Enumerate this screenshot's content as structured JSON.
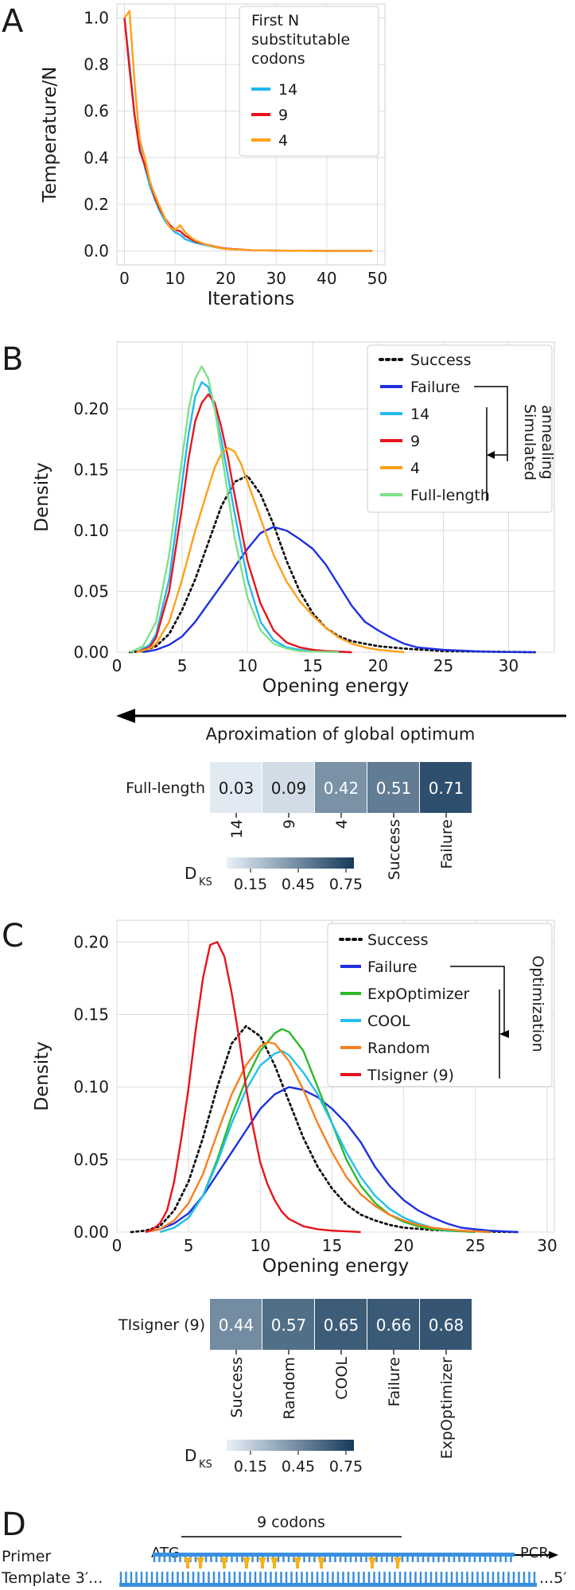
{
  "panel_letters": [
    "A",
    "B",
    "C",
    "D"
  ],
  "colors": {
    "success": "#111111",
    "failure": "#1f2fe0",
    "n14": "#22b8f0",
    "n9": "#e8141c",
    "n4": "#ffa019",
    "full": "#7fe08a",
    "expopt": "#2bbb2b",
    "cool": "#22c0ee",
    "random": "#f7801e",
    "tisigner": "#e8141c",
    "dna": "#3a8fe0",
    "mark": "#f5b21f",
    "heat_low": "#e9f1f8",
    "heat_high": "#153a5b"
  },
  "chart_data": [
    {
      "panel": "A",
      "type": "line",
      "xlabel": "Iterations",
      "ylabel": "Temperature/N",
      "xlim": [
        -1.5,
        51.5
      ],
      "ylim": [
        -0.06,
        1.06
      ],
      "xticks": [
        0,
        10,
        20,
        30,
        40,
        50
      ],
      "yticks": [
        0.0,
        0.2,
        0.4,
        0.6,
        0.8,
        1.0
      ],
      "grid": true,
      "legend": {
        "title": "First N substitutable codons",
        "position": "top-right",
        "title_lines": [
          "First N",
          "substitutable",
          "codons"
        ]
      },
      "series": [
        {
          "name": "14",
          "color_key": "n14",
          "x": [
            0,
            1,
            2,
            3,
            4,
            5,
            6,
            7,
            8,
            9,
            10,
            11,
            12,
            14,
            16,
            18,
            20,
            25,
            30,
            40,
            49
          ],
          "y": [
            1.0,
            0.8,
            0.58,
            0.45,
            0.36,
            0.28,
            0.22,
            0.17,
            0.13,
            0.1,
            0.08,
            0.07,
            0.05,
            0.035,
            0.025,
            0.015,
            0.008,
            0.003,
            0.001,
            0.0,
            0.0
          ]
        },
        {
          "name": "9",
          "color_key": "n9",
          "x": [
            0,
            1,
            2,
            3,
            4,
            5,
            6,
            7,
            8,
            9,
            10,
            11,
            12,
            14,
            16,
            18,
            20,
            25,
            30,
            40,
            49
          ],
          "y": [
            1.0,
            0.78,
            0.58,
            0.43,
            0.37,
            0.3,
            0.23,
            0.18,
            0.14,
            0.11,
            0.09,
            0.085,
            0.065,
            0.04,
            0.028,
            0.018,
            0.01,
            0.003,
            0.001,
            0.0,
            0.0
          ]
        },
        {
          "name": "4",
          "color_key": "n4",
          "x": [
            0,
            1,
            2,
            3,
            4,
            5,
            6,
            7,
            8,
            9,
            10,
            11,
            12,
            13,
            14,
            16,
            18,
            20,
            25,
            30,
            40,
            49
          ],
          "y": [
            1.0,
            1.03,
            0.72,
            0.48,
            0.4,
            0.3,
            0.24,
            0.19,
            0.14,
            0.1,
            0.09,
            0.11,
            0.08,
            0.06,
            0.045,
            0.028,
            0.016,
            0.008,
            0.003,
            0.001,
            0.0,
            0.0
          ]
        }
      ]
    },
    {
      "panel": "B",
      "type": "line",
      "xlabel": "Opening energy",
      "ylabel": "Density",
      "xlim": [
        0,
        33.5
      ],
      "ylim": [
        0,
        0.255
      ],
      "xticks": [
        0,
        5,
        10,
        15,
        20,
        25,
        30
      ],
      "yticks": [
        0.0,
        0.05,
        0.1,
        0.15,
        0.2
      ],
      "grid": true,
      "legend": {
        "position": "top-right",
        "group_label": "Simulated annealing"
      },
      "series": [
        {
          "name": "Success",
          "color_key": "success",
          "dotted": true,
          "x": [
            1,
            2,
            3,
            4,
            5,
            6,
            7,
            8,
            9,
            10,
            11,
            12,
            13,
            14,
            15,
            16,
            17,
            18,
            19,
            20,
            22,
            25,
            28,
            32
          ],
          "y": [
            0,
            0.001,
            0.005,
            0.015,
            0.035,
            0.06,
            0.09,
            0.12,
            0.14,
            0.145,
            0.13,
            0.105,
            0.075,
            0.05,
            0.032,
            0.02,
            0.013,
            0.009,
            0.007,
            0.005,
            0.003,
            0.001,
            0.0005,
            0
          ]
        },
        {
          "name": "Failure",
          "color_key": "failure",
          "x": [
            2,
            3,
            4,
            5,
            6,
            7,
            8,
            9,
            10,
            11,
            12,
            13,
            14,
            15,
            16,
            17,
            18,
            19,
            20,
            21,
            22,
            23,
            24,
            25,
            26,
            27,
            28,
            30,
            32
          ],
          "y": [
            0,
            0.002,
            0.006,
            0.013,
            0.025,
            0.04,
            0.055,
            0.07,
            0.085,
            0.098,
            0.103,
            0.1,
            0.093,
            0.085,
            0.072,
            0.055,
            0.038,
            0.025,
            0.018,
            0.012,
            0.007,
            0.004,
            0.003,
            0.002,
            0.0015,
            0.001,
            0.0005,
            0.0002,
            0
          ]
        },
        {
          "name": "14",
          "color_key": "n14",
          "x": [
            1.5,
            2.5,
            3,
            4,
            5,
            5.5,
            6,
            6.5,
            7,
            7.5,
            8,
            8.5,
            9,
            10,
            11,
            12,
            13,
            14,
            15,
            16,
            18
          ],
          "y": [
            0,
            0.006,
            0.015,
            0.06,
            0.14,
            0.18,
            0.21,
            0.222,
            0.218,
            0.2,
            0.175,
            0.145,
            0.115,
            0.06,
            0.025,
            0.01,
            0.004,
            0.002,
            0.001,
            0.0005,
            0
          ]
        },
        {
          "name": "9",
          "color_key": "n9",
          "x": [
            1.5,
            2.5,
            3,
            4,
            5,
            5.5,
            6,
            6.5,
            7,
            7.5,
            8,
            8.5,
            9,
            10,
            11,
            12,
            13,
            14,
            15,
            16,
            18
          ],
          "y": [
            0,
            0.004,
            0.012,
            0.05,
            0.12,
            0.16,
            0.19,
            0.205,
            0.212,
            0.205,
            0.185,
            0.16,
            0.13,
            0.075,
            0.04,
            0.018,
            0.008,
            0.004,
            0.002,
            0.001,
            0
          ]
        },
        {
          "name": "4",
          "color_key": "n4",
          "x": [
            1.5,
            2.5,
            3,
            4,
            5,
            6,
            7,
            7.5,
            8,
            8.5,
            9,
            9.5,
            10,
            11,
            12,
            13,
            14,
            15,
            16,
            17,
            18,
            19,
            20,
            22
          ],
          "y": [
            0,
            0.003,
            0.007,
            0.025,
            0.06,
            0.1,
            0.135,
            0.152,
            0.163,
            0.168,
            0.165,
            0.155,
            0.14,
            0.11,
            0.08,
            0.058,
            0.042,
            0.03,
            0.02,
            0.012,
            0.007,
            0.004,
            0.002,
            0
          ]
        },
        {
          "name": "Full-length",
          "color_key": "full",
          "x": [
            1,
            2,
            3,
            4,
            5,
            5.5,
            6,
            6.5,
            7,
            7.5,
            8,
            8.5,
            9,
            10,
            11,
            12,
            13,
            14,
            15,
            17
          ],
          "y": [
            0,
            0.005,
            0.025,
            0.08,
            0.16,
            0.2,
            0.225,
            0.235,
            0.225,
            0.2,
            0.165,
            0.13,
            0.095,
            0.045,
            0.018,
            0.007,
            0.003,
            0.001,
            0.0005,
            0
          ]
        }
      ],
      "heatmap": {
        "row_label": "Full-length",
        "columns": [
          "14",
          "9",
          "4",
          "Success",
          "Failure"
        ],
        "values": [
          0.03,
          0.09,
          0.42,
          0.51,
          0.71
        ],
        "labels": [
          "0.03",
          "0.09",
          "0.42",
          "0.51",
          "0.71"
        ],
        "colorbar_label": "D",
        "colorbar_sub": "KS",
        "colorbar_ticks": [
          "0.15",
          "0.45",
          "0.75"
        ],
        "colorbar_range": [
          0.0,
          0.8
        ]
      },
      "arrow_caption": "Aproximation of global optimum"
    },
    {
      "panel": "C",
      "type": "line",
      "xlabel": "Opening energy",
      "ylabel": "Density",
      "xlim": [
        0,
        30.5
      ],
      "ylim": [
        0,
        0.215
      ],
      "xticks": [
        0,
        5,
        10,
        15,
        20,
        25,
        30
      ],
      "yticks": [
        0.0,
        0.05,
        0.1,
        0.15,
        0.2
      ],
      "grid": true,
      "legend": {
        "position": "top-right",
        "group_label": "Optimization"
      },
      "series": [
        {
          "name": "Success",
          "color_key": "success",
          "dotted": true,
          "x": [
            1,
            2,
            3,
            4,
            5,
            6,
            7,
            8,
            9,
            10,
            11,
            12,
            13,
            14,
            15,
            16,
            17,
            18,
            19,
            20,
            22,
            25,
            28
          ],
          "y": [
            0,
            0.001,
            0.004,
            0.015,
            0.035,
            0.065,
            0.1,
            0.13,
            0.142,
            0.135,
            0.115,
            0.09,
            0.065,
            0.045,
            0.03,
            0.019,
            0.012,
            0.008,
            0.005,
            0.003,
            0.0015,
            0.0005,
            0
          ]
        },
        {
          "name": "Failure",
          "color_key": "failure",
          "x": [
            2,
            3,
            4,
            5,
            6,
            7,
            8,
            9,
            10,
            11,
            12,
            13,
            14,
            15,
            16,
            17,
            18,
            19,
            20,
            21,
            22,
            23,
            24,
            25,
            26,
            27,
            28
          ],
          "y": [
            0,
            0.002,
            0.006,
            0.013,
            0.025,
            0.04,
            0.055,
            0.07,
            0.085,
            0.095,
            0.1,
            0.098,
            0.093,
            0.085,
            0.075,
            0.062,
            0.045,
            0.032,
            0.022,
            0.015,
            0.01,
            0.006,
            0.003,
            0.002,
            0.001,
            0.0005,
            0
          ]
        },
        {
          "name": "ExpOptimizer",
          "color_key": "expopt",
          "x": [
            3,
            4,
            5,
            6,
            7,
            8,
            9,
            10,
            11,
            11.5,
            12,
            13,
            14,
            15,
            16,
            17,
            18,
            19,
            20,
            21,
            22,
            23,
            24,
            25
          ],
          "y": [
            0,
            0.003,
            0.01,
            0.025,
            0.05,
            0.08,
            0.105,
            0.125,
            0.137,
            0.14,
            0.138,
            0.125,
            0.1,
            0.075,
            0.05,
            0.032,
            0.02,
            0.012,
            0.007,
            0.004,
            0.002,
            0.001,
            0.0005,
            0
          ]
        },
        {
          "name": "COOL",
          "color_key": "cool",
          "x": [
            3,
            4,
            5,
            6,
            7,
            8,
            9,
            10,
            11,
            11.5,
            12,
            13,
            14,
            15,
            16,
            17,
            18,
            19,
            20,
            21,
            22,
            23,
            24,
            25,
            26
          ],
          "y": [
            0,
            0.003,
            0.01,
            0.025,
            0.048,
            0.075,
            0.098,
            0.115,
            0.123,
            0.125,
            0.122,
            0.11,
            0.095,
            0.075,
            0.055,
            0.038,
            0.025,
            0.016,
            0.01,
            0.006,
            0.003,
            0.0015,
            0.001,
            0.0005,
            0
          ]
        },
        {
          "name": "Random",
          "color_key": "random",
          "x": [
            2,
            3,
            4,
            5,
            6,
            7,
            8,
            9,
            10,
            10.5,
            11,
            12,
            13,
            14,
            15,
            16,
            17,
            18,
            19,
            20,
            21,
            22,
            23,
            24,
            26
          ],
          "y": [
            0,
            0.002,
            0.008,
            0.02,
            0.04,
            0.068,
            0.095,
            0.115,
            0.128,
            0.131,
            0.13,
            0.118,
            0.098,
            0.075,
            0.055,
            0.038,
            0.026,
            0.018,
            0.012,
            0.008,
            0.005,
            0.003,
            0.002,
            0.001,
            0
          ]
        },
        {
          "name": "TIsigner (9)",
          "color_key": "tisigner",
          "x": [
            2,
            2.5,
            3,
            3.5,
            4,
            4.5,
            5,
            5.5,
            6,
            6.5,
            7,
            7.5,
            8,
            8.5,
            9,
            9.5,
            10,
            10.5,
            11,
            11.5,
            12,
            13,
            14,
            15,
            16,
            17
          ],
          "y": [
            0,
            0.002,
            0.006,
            0.015,
            0.035,
            0.065,
            0.1,
            0.14,
            0.175,
            0.198,
            0.2,
            0.19,
            0.165,
            0.135,
            0.1,
            0.072,
            0.048,
            0.033,
            0.022,
            0.014,
            0.009,
            0.004,
            0.002,
            0.001,
            0.0005,
            0
          ]
        }
      ],
      "heatmap": {
        "row_label": "TIsigner (9)",
        "columns": [
          "Success",
          "Random",
          "COOL",
          "Failure",
          "ExpOptimizer"
        ],
        "values": [
          0.44,
          0.57,
          0.65,
          0.66,
          0.68
        ],
        "labels": [
          "0.44",
          "0.57",
          "0.65",
          "0.66",
          "0.68"
        ],
        "colorbar_label": "D",
        "colorbar_sub": "KS",
        "colorbar_ticks": [
          "0.15",
          "0.45",
          "0.75"
        ],
        "colorbar_range": [
          0.0,
          0.8
        ]
      }
    }
  ],
  "panel_d": {
    "codon_label": "9 codons",
    "start_label": "ATG",
    "pcr_label": "PCR",
    "primer_label": "Primer",
    "template_label": "Template 3′...",
    "template_end": "...5′",
    "mismatch_count": 9
  }
}
